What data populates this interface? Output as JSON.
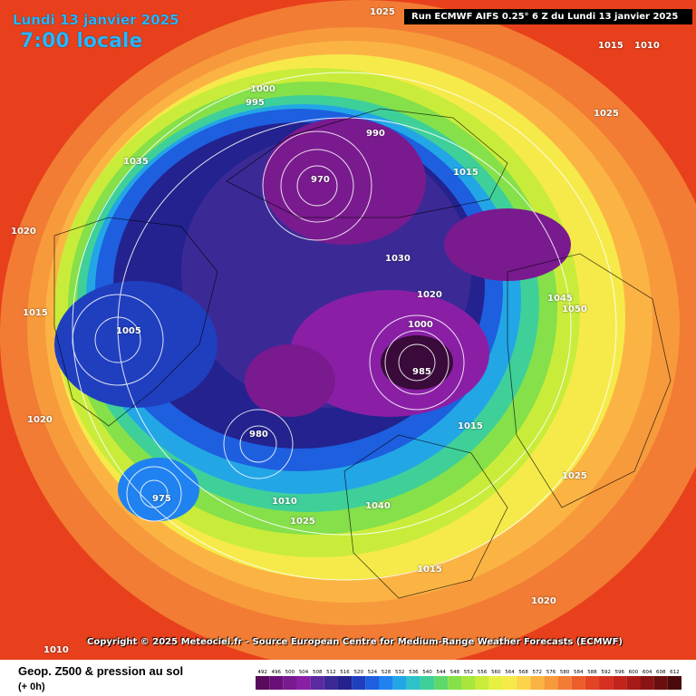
{
  "header": {
    "date": "Lundi 13 janvier 2025",
    "time": "7:00 locale",
    "run_info": "Run ECMWF AIFS 0.25° 6 Z du Lundi 13 janvier 2025"
  },
  "copyright": "Copyright © 2025 Meteociel.fr - Source European Centre for Medium-Range Weather Forecasts (ECMWF)",
  "footer": {
    "title": "Geop. Z500 & pression au sol",
    "subtitle": "(+ 0h)"
  },
  "legend": {
    "values": [
      "492",
      "496",
      "500",
      "504",
      "508",
      "512",
      "516",
      "520",
      "524",
      "528",
      "532",
      "536",
      "540",
      "544",
      "548",
      "552",
      "556",
      "560",
      "564",
      "568",
      "572",
      "576",
      "580",
      "584",
      "588",
      "592",
      "596",
      "600",
      "604",
      "608",
      "612"
    ],
    "colors": [
      "#5a0a5a",
      "#6b0f78",
      "#7a1a8f",
      "#8a1fa6",
      "#5a2aa0",
      "#3b2a96",
      "#23228f",
      "#1f3fbf",
      "#1d5fdf",
      "#1f82f0",
      "#23a6e6",
      "#2ec2c8",
      "#3fd09a",
      "#5fd86a",
      "#85e04a",
      "#a8e63c",
      "#c9ec3a",
      "#e6f040",
      "#f6ea4a",
      "#fbd44a",
      "#fbb444",
      "#f79a3c",
      "#f27c33",
      "#ec5d2a",
      "#e24424",
      "#d63020",
      "#c2241c",
      "#a81a18",
      "#8a1414",
      "#6a0f10",
      "#4a0a0c"
    ]
  },
  "pressure_labels": [
    "1025",
    "1015",
    "1010",
    "1000",
    "995",
    "990",
    "985",
    "980",
    "975",
    "970",
    "1005",
    "1020",
    "1030",
    "1035",
    "1040",
    "1045",
    "1050"
  ],
  "map_style": {
    "background": "#e8401c",
    "isobar_color": "#ffffff",
    "coast_color": "#000000"
  }
}
